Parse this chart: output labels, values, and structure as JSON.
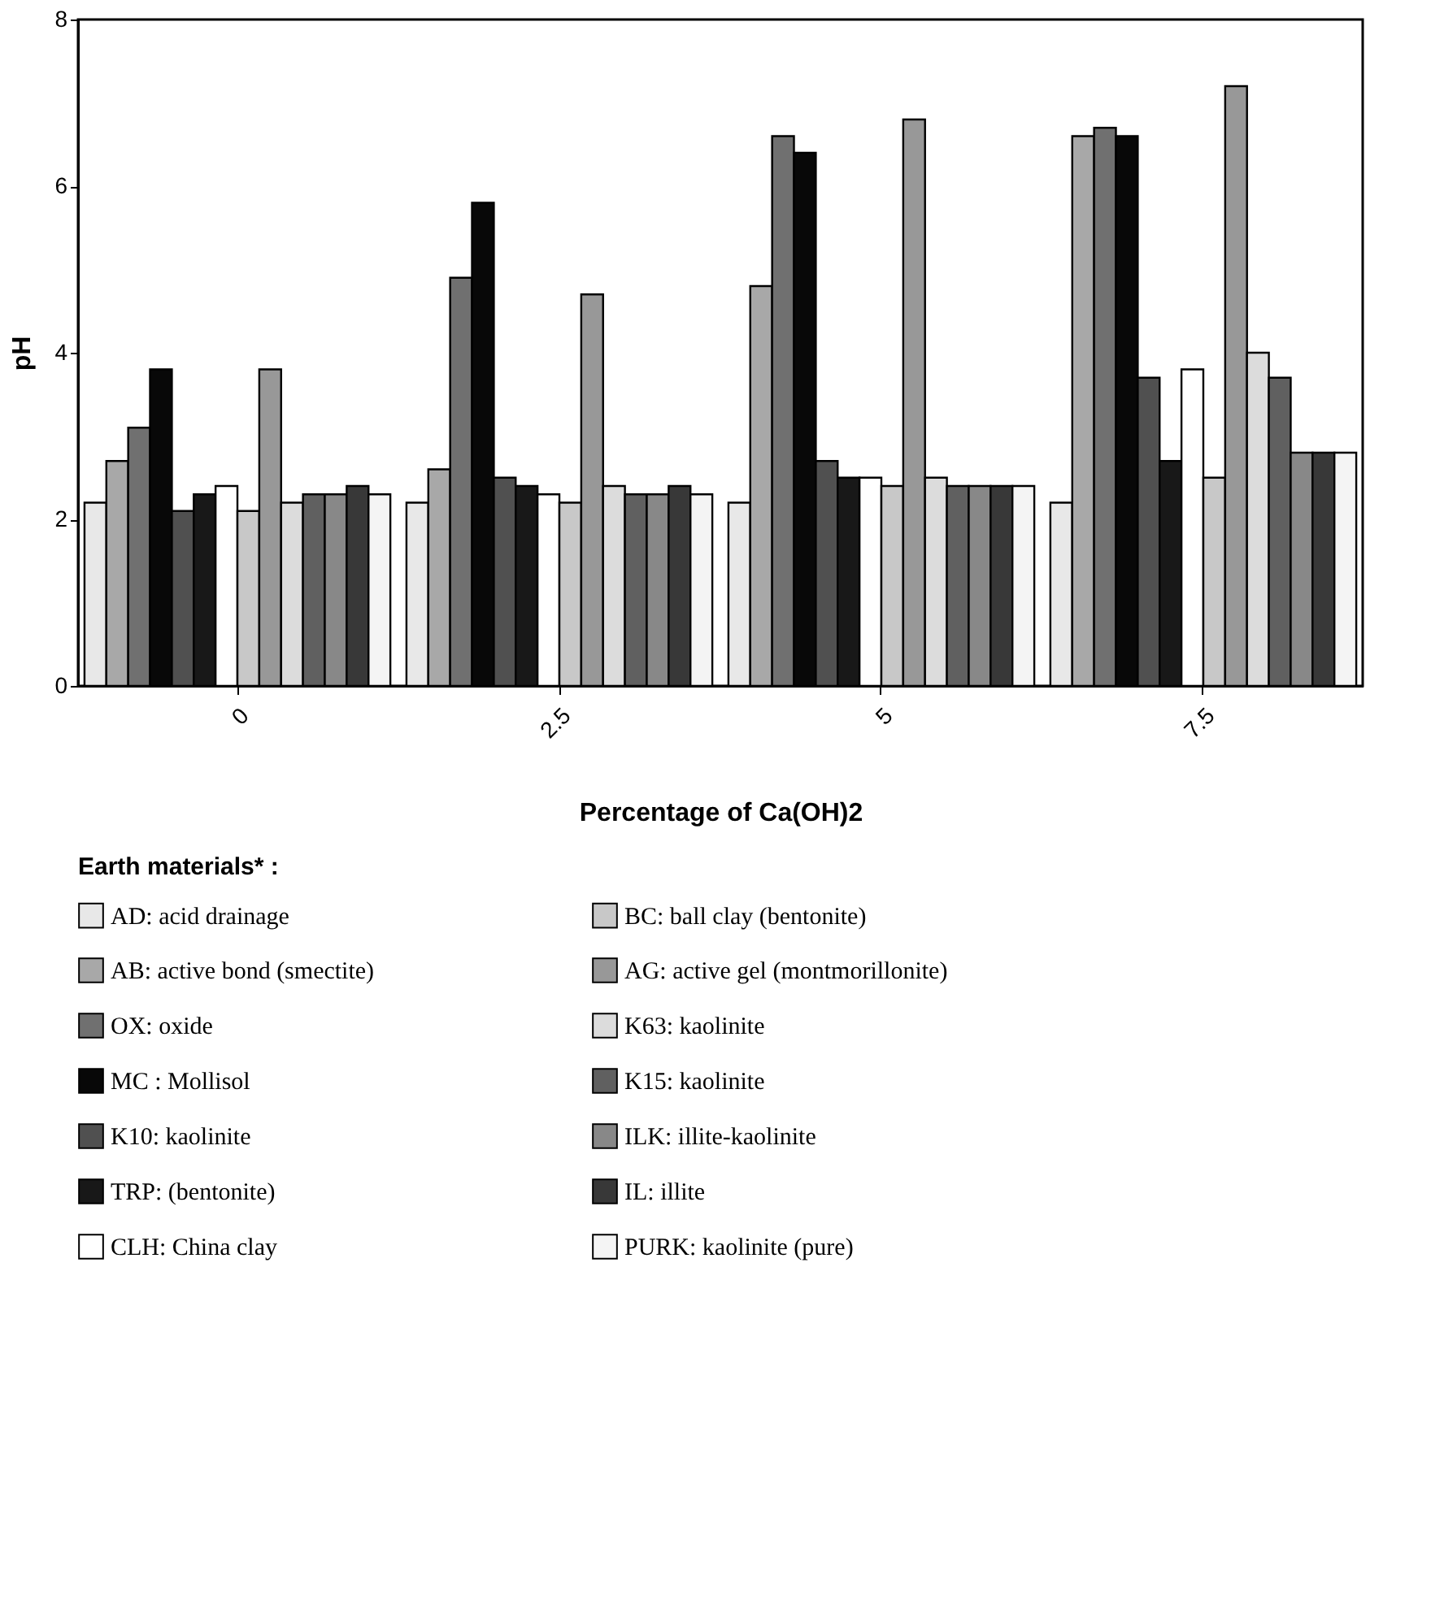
{
  "chart_data": {
    "type": "bar",
    "xlabel": "Percentage of Ca(OH)2",
    "ylabel": "pH",
    "legend_title": "Earth materials* :",
    "categories": [
      "0",
      "2.5",
      "5",
      "7.5"
    ],
    "ylim": [
      0,
      8
    ],
    "yticks": [
      0,
      2,
      4,
      6,
      8
    ],
    "grid": false,
    "legend": "bottom",
    "series": [
      {
        "name": "AD:   acid drainage",
        "color": "#e8e8e8",
        "values": [
          2.2,
          2.2,
          2.2,
          2.2
        ]
      },
      {
        "name": "AB:   active bond  (smectite)",
        "color": "#a8a8a8",
        "values": [
          2.7,
          2.6,
          4.8,
          6.6
        ]
      },
      {
        "name": "OX:   oxide",
        "color": "#707070",
        "values": [
          3.1,
          4.9,
          6.6,
          6.7
        ]
      },
      {
        "name": "MC :  Mollisol",
        "color": "#080808",
        "values": [
          3.8,
          5.8,
          6.4,
          6.6
        ]
      },
      {
        "name": "K10:   kaolinite",
        "color": "#505050",
        "values": [
          2.1,
          2.5,
          2.7,
          3.7
        ]
      },
      {
        "name": "TRP:  (bentonite)",
        "color": "#181818",
        "values": [
          2.3,
          2.4,
          2.5,
          2.7
        ]
      },
      {
        "name": "CLH:  China clay",
        "color": "#ffffff",
        "values": [
          2.4,
          2.3,
          2.5,
          3.8
        ]
      },
      {
        "name": "BC:    ball clay (bentonite)",
        "color": "#c8c8c8",
        "values": [
          2.1,
          2.2,
          2.4,
          2.5
        ]
      },
      {
        "name": "AG:    active gel (montmorillonite)",
        "color": "#989898",
        "values": [
          3.8,
          4.7,
          6.8,
          7.2
        ]
      },
      {
        "name": "K63:  kaolinite",
        "color": "#dcdcdc",
        "values": [
          2.2,
          2.4,
          2.5,
          4.0
        ]
      },
      {
        "name": "K15:   kaolinite",
        "color": "#606060",
        "values": [
          2.3,
          2.3,
          2.4,
          3.7
        ]
      },
      {
        "name": "ILK:    illite-kaolinite",
        "color": "#888888",
        "values": [
          2.3,
          2.3,
          2.4,
          2.8
        ]
      },
      {
        "name": "IL:       illite",
        "color": "#383838",
        "values": [
          2.4,
          2.4,
          2.4,
          2.8
        ]
      },
      {
        "name": "PURK: kaolinite (pure)",
        "color": "#f4f4f4",
        "values": [
          2.3,
          2.3,
          2.4,
          2.8
        ]
      }
    ]
  }
}
